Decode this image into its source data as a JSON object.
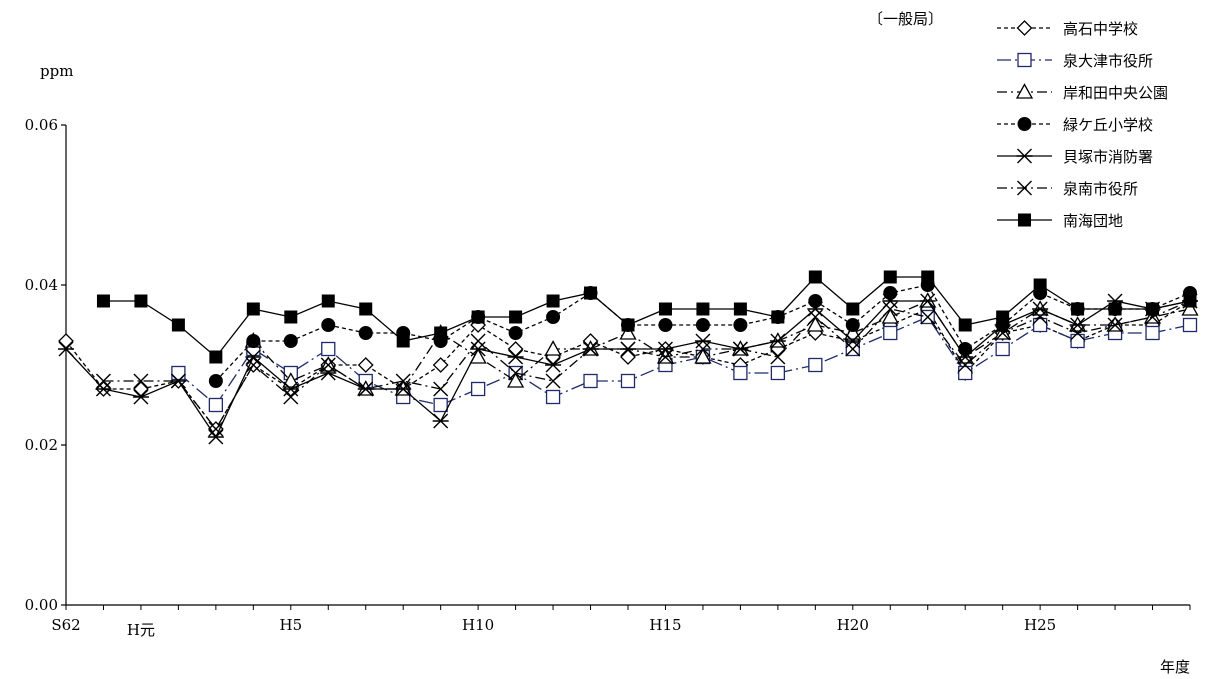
{
  "chart_data": {
    "type": "line",
    "title": "",
    "corner_label": "〔一般局〕",
    "ylabel": "ppm",
    "xlabel": "年度",
    "ylim": [
      0.0,
      0.06
    ],
    "yticks": [
      {
        "value": 0.0,
        "label": "0.00"
      },
      {
        "value": 0.02,
        "label": "0.02"
      },
      {
        "value": 0.04,
        "label": "0.04"
      },
      {
        "value": 0.06,
        "label": "0.06"
      }
    ],
    "x_range": [
      62,
      92
    ],
    "x_axis_ticks": [
      62,
      92
    ],
    "xticks": [
      {
        "x": 62,
        "label": "S62"
      },
      {
        "x": 64,
        "label": "H元"
      },
      {
        "x": 68,
        "label": "H5"
      },
      {
        "x": 73,
        "label": "H10"
      },
      {
        "x": 78,
        "label": "H15"
      },
      {
        "x": 83,
        "label": "H20"
      },
      {
        "x": 88,
        "label": "H25"
      }
    ],
    "grid": false,
    "legend_position": "top-right",
    "series": [
      {
        "name": "高石中学校",
        "marker": "diamond",
        "dash": "4,3",
        "color": "#000000",
        "points": [
          [
            62,
            0.033
          ],
          [
            63,
            0.027
          ],
          [
            64,
            0.027
          ],
          [
            65,
            0.028
          ],
          [
            66,
            0.022
          ],
          [
            67,
            0.03
          ],
          [
            68,
            0.027
          ],
          [
            69,
            0.03
          ],
          [
            70,
            0.03
          ],
          [
            71,
            0.027
          ],
          [
            72,
            0.03
          ],
          [
            73,
            0.035
          ],
          [
            74,
            0.032
          ],
          [
            75,
            0.031
          ],
          [
            76,
            0.033
          ],
          [
            77,
            0.031
          ],
          [
            78,
            0.032
          ],
          [
            79,
            0.031
          ],
          [
            80,
            0.03
          ],
          [
            81,
            0.032
          ],
          [
            82,
            0.034
          ],
          [
            83,
            0.033
          ],
          [
            84,
            0.035
          ],
          [
            85,
            0.037
          ],
          [
            86,
            0.029
          ],
          [
            87,
            0.034
          ],
          [
            88,
            0.035
          ],
          [
            89,
            0.033
          ],
          [
            90,
            0.035
          ],
          [
            91,
            0.035
          ],
          [
            92,
            0.038
          ]
        ]
      },
      {
        "name": "泉大津市役所",
        "marker": "square-open",
        "dash": "14,4,2,4",
        "color": "#1f2a6b",
        "points": [
          [
            65,
            0.029
          ],
          [
            66,
            0.025
          ],
          [
            67,
            0.032
          ],
          [
            68,
            0.029
          ],
          [
            69,
            0.032
          ],
          [
            70,
            0.028
          ],
          [
            71,
            0.026
          ],
          [
            72,
            0.025
          ],
          [
            73,
            0.027
          ],
          [
            74,
            0.029
          ],
          [
            75,
            0.026
          ],
          [
            76,
            0.028
          ],
          [
            77,
            0.028
          ],
          [
            78,
            0.03
          ],
          [
            79,
            0.031
          ],
          [
            80,
            0.029
          ],
          [
            81,
            0.029
          ],
          [
            82,
            0.03
          ],
          [
            83,
            0.032
          ],
          [
            84,
            0.034
          ],
          [
            85,
            0.036
          ],
          [
            86,
            0.029
          ],
          [
            87,
            0.032
          ],
          [
            88,
            0.035
          ],
          [
            89,
            0.033
          ],
          [
            90,
            0.034
          ],
          [
            91,
            0.034
          ],
          [
            92,
            0.035
          ]
        ]
      },
      {
        "name": "岸和田中央公園",
        "marker": "triangle",
        "dash": "10,4,2,4",
        "color": "#000000",
        "points": [
          [
            67,
            0.033
          ],
          [
            68,
            0.028
          ],
          [
            69,
            0.03
          ],
          [
            70,
            0.027
          ],
          [
            71,
            0.027
          ],
          [
            72,
            0.034
          ],
          [
            73,
            0.031
          ],
          [
            74,
            0.028
          ],
          [
            75,
            0.032
          ],
          [
            76,
            0.032
          ],
          [
            77,
            0.034
          ],
          [
            78,
            0.031
          ],
          [
            79,
            0.031
          ],
          [
            80,
            0.032
          ],
          [
            81,
            0.033
          ],
          [
            82,
            0.035
          ],
          [
            83,
            0.034
          ],
          [
            84,
            0.036
          ],
          [
            85,
            0.038
          ],
          [
            86,
            0.031
          ],
          [
            87,
            0.034
          ],
          [
            88,
            0.037
          ],
          [
            89,
            0.035
          ],
          [
            90,
            0.035
          ],
          [
            91,
            0.036
          ],
          [
            92,
            0.037
          ]
        ]
      },
      {
        "name": "緑ケ丘小学校",
        "marker": "circle-filled",
        "dash": "4,3",
        "color": "#000000",
        "points": [
          [
            66,
            0.028
          ],
          [
            67,
            0.033
          ],
          [
            68,
            0.033
          ],
          [
            69,
            0.035
          ],
          [
            70,
            0.034
          ],
          [
            71,
            0.034
          ],
          [
            72,
            0.033
          ],
          [
            73,
            0.036
          ],
          [
            74,
            0.034
          ],
          [
            75,
            0.036
          ],
          [
            76,
            0.039
          ],
          [
            77,
            0.035
          ],
          [
            78,
            0.035
          ],
          [
            79,
            0.035
          ],
          [
            80,
            0.035
          ],
          [
            81,
            0.036
          ],
          [
            82,
            0.038
          ],
          [
            83,
            0.035
          ],
          [
            84,
            0.039
          ],
          [
            85,
            0.04
          ],
          [
            86,
            0.032
          ],
          [
            87,
            0.035
          ],
          [
            88,
            0.039
          ],
          [
            89,
            0.037
          ],
          [
            90,
            0.037
          ],
          [
            91,
            0.037
          ],
          [
            92,
            0.039
          ]
        ]
      },
      {
        "name": "貝塚市消防署",
        "marker": "asterisk",
        "dash": "",
        "color": "#000000",
        "points": [
          [
            62,
            0.032
          ],
          [
            63,
            0.027
          ],
          [
            64,
            0.026
          ],
          [
            65,
            0.028
          ],
          [
            66,
            0.021
          ],
          [
            67,
            0.031
          ],
          [
            68,
            0.027
          ],
          [
            69,
            0.029
          ],
          [
            70,
            0.027
          ],
          [
            71,
            0.027
          ],
          [
            72,
            0.023
          ],
          [
            73,
            0.032
          ],
          [
            74,
            0.031
          ],
          [
            75,
            0.03
          ],
          [
            76,
            0.032
          ],
          [
            77,
            0.032
          ],
          [
            78,
            0.032
          ],
          [
            79,
            0.033
          ],
          [
            80,
            0.032
          ],
          [
            81,
            0.033
          ],
          [
            82,
            0.037
          ],
          [
            83,
            0.033
          ],
          [
            84,
            0.038
          ],
          [
            85,
            0.038
          ],
          [
            86,
            0.031
          ],
          [
            87,
            0.035
          ],
          [
            88,
            0.037
          ],
          [
            89,
            0.035
          ],
          [
            90,
            0.038
          ],
          [
            91,
            0.037
          ],
          [
            92,
            0.038
          ]
        ]
      },
      {
        "name": "泉南市役所",
        "marker": "x",
        "dash": "10,4,2,4",
        "color": "#000000",
        "points": [
          [
            63,
            0.028
          ],
          [
            64,
            0.028
          ],
          [
            65,
            0.028
          ],
          [
            66,
            0.022
          ],
          [
            67,
            0.03
          ],
          [
            68,
            0.026
          ],
          [
            69,
            0.03
          ],
          [
            70,
            0.027
          ],
          [
            71,
            0.028
          ],
          [
            72,
            0.027
          ],
          [
            73,
            0.033
          ],
          [
            74,
            0.029
          ],
          [
            75,
            0.028
          ],
          [
            76,
            0.032
          ],
          [
            77,
            0.032
          ],
          [
            78,
            0.031
          ],
          [
            79,
            0.032
          ],
          [
            80,
            0.032
          ],
          [
            81,
            0.031
          ],
          [
            82,
            0.036
          ],
          [
            83,
            0.032
          ],
          [
            84,
            0.037
          ],
          [
            85,
            0.036
          ],
          [
            86,
            0.03
          ],
          [
            87,
            0.034
          ],
          [
            88,
            0.036
          ],
          [
            89,
            0.034
          ],
          [
            90,
            0.035
          ],
          [
            91,
            0.036
          ],
          [
            92,
            0.038
          ]
        ]
      },
      {
        "name": "南海団地",
        "marker": "square-filled",
        "dash": "",
        "color": "#000000",
        "points": [
          [
            63,
            0.038
          ],
          [
            64,
            0.038
          ],
          [
            65,
            0.035
          ],
          [
            66,
            0.031
          ],
          [
            67,
            0.037
          ],
          [
            68,
            0.036
          ],
          [
            69,
            0.038
          ],
          [
            70,
            0.037
          ],
          [
            71,
            0.033
          ],
          [
            72,
            0.034
          ],
          [
            73,
            0.036
          ],
          [
            74,
            0.036
          ],
          [
            75,
            0.038
          ],
          [
            76,
            0.039
          ],
          [
            77,
            0.035
          ],
          [
            78,
            0.037
          ],
          [
            79,
            0.037
          ],
          [
            80,
            0.037
          ],
          [
            81,
            0.036
          ],
          [
            82,
            0.041
          ],
          [
            83,
            0.037
          ],
          [
            84,
            0.041
          ],
          [
            85,
            0.041
          ],
          [
            86,
            0.035
          ],
          [
            87,
            0.036
          ],
          [
            88,
            0.04
          ],
          [
            89,
            0.037
          ],
          [
            90,
            0.037
          ],
          [
            91,
            0.037
          ],
          [
            92,
            0.038
          ]
        ]
      }
    ]
  }
}
